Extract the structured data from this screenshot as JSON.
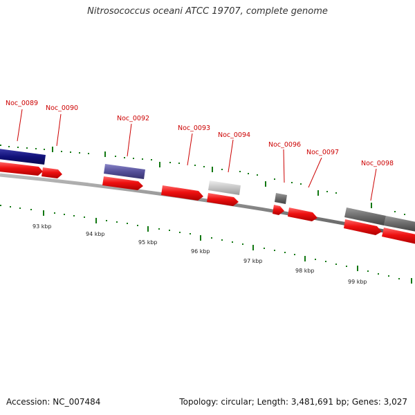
{
  "title": "Nitrosococcus oceani ATCC 19707, complete genome",
  "accession": "Accession: NC_007484",
  "summary": "Topology: circular; Length: 3,481,691 bp; Genes: 3,027",
  "colors": {
    "forward_cds": "#ee1111",
    "backbone": "#888888",
    "tick": "#117711",
    "label": "#cc0000",
    "feature_navy": "#11117a",
    "feature_slate": "#55509a",
    "feature_lightgray": "#c4c4c4",
    "feature_gray": "#6a6a6a",
    "feature_midgray": "#7a7a7a"
  },
  "gene_labels": [
    "Noc_0089",
    "Noc_0090",
    "Noc_0092",
    "Noc_0093",
    "Noc_0094",
    "Noc_0096",
    "Noc_0097",
    "Noc_0098"
  ],
  "kbp_labels": [
    "93 kbp",
    "94 kbp",
    "95 kbp",
    "96 kbp",
    "97 kbp",
    "98 kbp",
    "99 kbp"
  ]
}
